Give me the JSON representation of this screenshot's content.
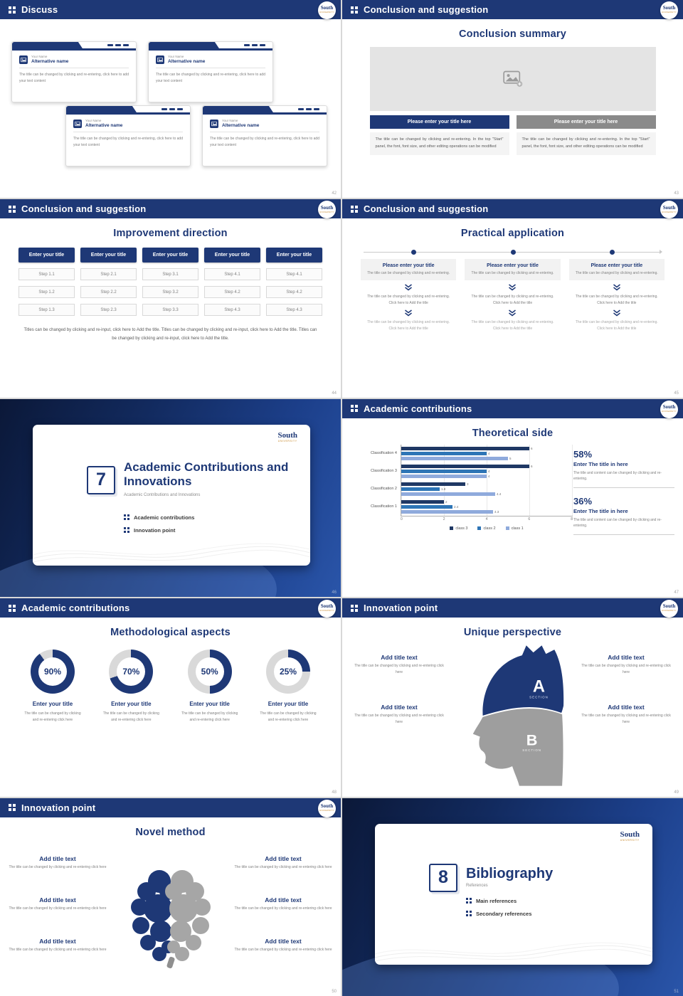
{
  "colors": {
    "navy": "#1e3876",
    "gold": "#c8882b",
    "donut_track": "#d9d9d9"
  },
  "logo": {
    "name": "South",
    "sub": "UNIVERSITY"
  },
  "chart_data": {
    "type": "bar",
    "orientation": "horizontal",
    "title": "Theoretical side",
    "categories": [
      "Classification 4",
      "Classification 3",
      "Classification 2",
      "Classification 1"
    ],
    "series": [
      {
        "name": "class 3",
        "color": "#1f3864",
        "values": [
          6,
          6,
          3,
          2
        ]
      },
      {
        "name": "class 2",
        "color": "#2e75b6",
        "values": [
          4,
          4,
          1.8,
          2.4
        ]
      },
      {
        "name": "class 1",
        "color": "#8faadc",
        "values": [
          5,
          4,
          4.4,
          4.3
        ]
      }
    ],
    "xlim": [
      0,
      8
    ],
    "xticks": [
      0,
      2,
      4,
      6,
      8
    ],
    "legend_position": "bottom",
    "grid": true
  },
  "slides": {
    "discuss": {
      "header": "Discuss",
      "page": "42",
      "cards": [
        {
          "name": "Your Name",
          "alt": "Alternative name",
          "body": "The title can be changed by clicking and re-entering, click here to add your text content"
        },
        {
          "name": "Your Name",
          "alt": "Alternative name",
          "body": "The title can be changed by clicking and re-entering, click here to add your text content"
        },
        {
          "name": "Your Name",
          "alt": "Alternative name",
          "body": "The title can be changed by clicking and re-entering, click here to add your text content"
        },
        {
          "name": "Your Name",
          "alt": "Alternative name",
          "body": "The title can be changed by clicking and re-entering, click here to add your text content"
        }
      ]
    },
    "conclusion_summary": {
      "header": "Conclusion and suggestion",
      "title": "Conclusion summary",
      "page": "43",
      "columns": [
        {
          "button": "Please enter your title here",
          "body": "The title can be changed by clicking and re-entering. In the top \"Start\" panel, the font, font size, and other editing operations can be modified"
        },
        {
          "button": "Please enter your title here",
          "body": "The title can be changed by clicking and re-entering. In the top \"Start\" panel, the font, font size, and other editing operations can be modified"
        }
      ]
    },
    "improvement": {
      "header": "Conclusion and suggestion",
      "title": "Improvement direction",
      "page": "44",
      "columns": [
        {
          "button": "Enter your title",
          "steps": [
            "Step 1.1",
            "Step 1.2",
            "Step 1.3"
          ]
        },
        {
          "button": "Enter your title",
          "steps": [
            "Step 2.1",
            "Step 2.2",
            "Step 2.3"
          ]
        },
        {
          "button": "Enter your title",
          "steps": [
            "Step 3.1",
            "Step 3.2",
            "Step 3.3"
          ]
        },
        {
          "button": "Enter your title",
          "steps": [
            "Step 4.1",
            "Step 4.2",
            "Step 4.3"
          ]
        },
        {
          "button": "Enter your title",
          "steps": [
            "Step 4.1",
            "Step 4.2",
            "Step 4.3"
          ]
        }
      ],
      "footer": "Titles can be changed by clicking and re-input, click here to Add the title. Titles can be changed by clicking and re-input, click here to Add the title. Titles can be changed by clicking and re-input, click here to Add the title."
    },
    "practical": {
      "header": "Conclusion and suggestion",
      "title": "Practical application",
      "page": "45",
      "columns": [
        {
          "title": "Please enter your title",
          "box_body": "The title can be changed by clicking and re-entering.",
          "mid": "The title can be changed by clicking and re-entering. Click here to Add the title",
          "end": "The title can be changed by clicking and re-entering. Click here to Add the title"
        },
        {
          "title": "Please enter your title",
          "box_body": "The title can be changed by clicking and re-entering.",
          "mid": "The title can be changed by clicking and re-entering. Click here to Add the title",
          "end": "The title can be changed by clicking and re-entering. Click here to Add the title"
        },
        {
          "title": "Please enter your title",
          "box_body": "The title can be changed by clicking and re-entering.",
          "mid": "The title can be changed by clicking and re-entering. Click here to Add the title",
          "end": "The title can be changed by clicking and re-entering. Click here to Add the title"
        }
      ]
    },
    "divider7": {
      "number": "7",
      "title": "Academic Contributions and Innovations",
      "subtitle": "Academic Contributions and Innovations",
      "items": [
        "Academic contributions",
        "Innovation point"
      ],
      "page": "46"
    },
    "theoretical": {
      "header": "Academic contributions",
      "title": "Theoretical side",
      "page": "47",
      "stats": [
        {
          "value": "58%",
          "title": "Enter The title in here",
          "body": "The title and content can be changed by clicking and re-entering."
        },
        {
          "value": "36%",
          "title": "Enter The title in here",
          "body": "The title and content can be changed by clicking and re-entering."
        }
      ]
    },
    "methodological": {
      "header": "Academic contributions",
      "title": "Methodological aspects",
      "page": "48",
      "donuts": [
        {
          "value": 90,
          "label": "90%",
          "title": "Enter your title",
          "body": "The title can be changed by clicking and re-entering click here"
        },
        {
          "value": 70,
          "label": "70%",
          "title": "Enter your title",
          "body": "The title can be changed by clicking and re-entering click here"
        },
        {
          "value": 50,
          "label": "50%",
          "title": "Enter your title",
          "body": "The title can be changed by clicking and re-entering click here"
        },
        {
          "value": 25,
          "label": "25%",
          "title": "Enter your title",
          "body": "The title can be changed by clicking and re-entering click here"
        }
      ]
    },
    "unique": {
      "header": "Innovation point",
      "title": "Unique perspective",
      "page": "49",
      "section_a": "A",
      "section_a_sub": "SECTION",
      "section_b": "B",
      "section_b_sub": "SECTION",
      "left": [
        {
          "title": "Add title text",
          "body": "The title can be changed by clicking and re-entering click here"
        },
        {
          "title": "Add title text",
          "body": "The title can be changed by clicking and re-entering click here"
        }
      ],
      "right": [
        {
          "title": "Add title text",
          "body": "The title can be changed by clicking and re-entering click here"
        },
        {
          "title": "Add title text",
          "body": "The title can be changed by clicking and re-entering click here"
        }
      ]
    },
    "novel": {
      "header": "Innovation point",
      "title": "Novel method",
      "page": "50",
      "left": [
        {
          "title": "Add title text",
          "body": "The title can be changed by clicking and re-entering click here"
        },
        {
          "title": "Add title text",
          "body": "The title can be changed by clicking and re-entering click here"
        },
        {
          "title": "Add title text",
          "body": "The title can be changed by clicking and re-entering click here"
        }
      ],
      "right": [
        {
          "title": "Add title text",
          "body": "The title can be changed by clicking and re-entering click here"
        },
        {
          "title": "Add title text",
          "body": "The title can be changed by clicking and re-entering click here"
        },
        {
          "title": "Add title text",
          "body": "The title can be changed by clicking and re-entering click here"
        }
      ]
    },
    "divider8": {
      "number": "8",
      "title": "Bibliography",
      "subtitle": "References",
      "items": [
        "Main references",
        "Secondary references"
      ],
      "page": "51"
    }
  }
}
